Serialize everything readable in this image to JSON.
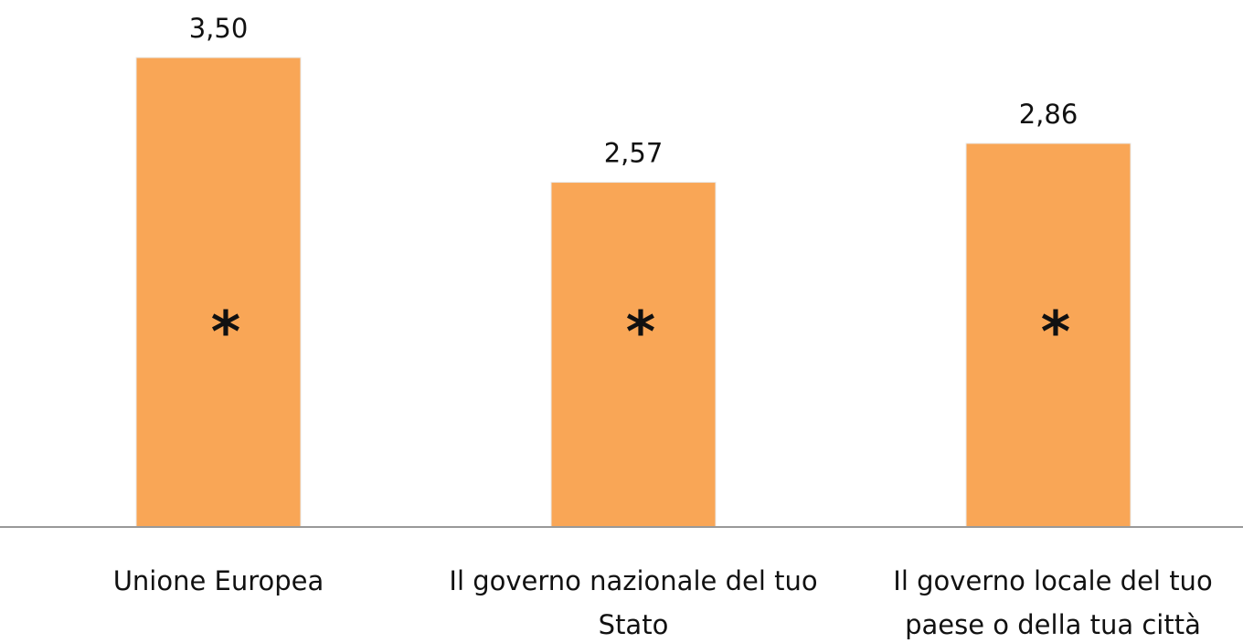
{
  "chart_data": {
    "type": "bar",
    "categories": [
      "Unione Europea",
      "Il governo nazionale del tuo Stato",
      "Il governo locale del tuo paese o della tua città"
    ],
    "values": [
      3.5,
      2.57,
      2.86
    ],
    "value_labels": [
      "3,50",
      "2,57",
      "2,86"
    ],
    "annotations": [
      "*",
      "*",
      "*"
    ],
    "color": "#f9a656"
  }
}
